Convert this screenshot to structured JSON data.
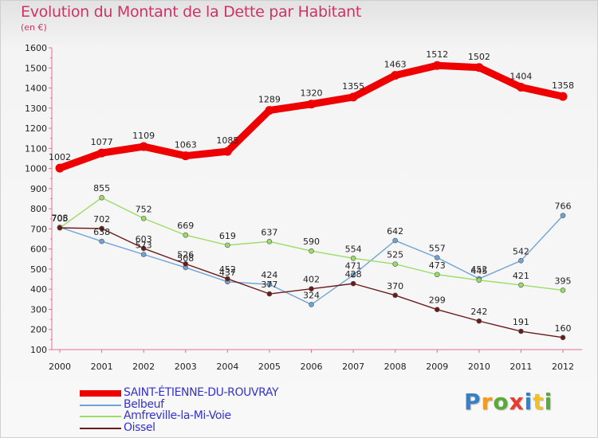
{
  "header": {
    "title": "Evolution du Montant de la Dette par Habitant",
    "subtitle": "(en €)"
  },
  "logo": {
    "text": "Proxiti",
    "letters": [
      {
        "ch": "P",
        "color": "#3a7fc1"
      },
      {
        "ch": "r",
        "color": "#f29a1f"
      },
      {
        "ch": "o",
        "color": "#5aaa3a"
      },
      {
        "ch": "x",
        "color": "#e63b2e"
      },
      {
        "ch": "i",
        "color": "#3a7fc1"
      },
      {
        "ch": "t",
        "color": "#f2c01f"
      },
      {
        "ch": "i",
        "color": "#5aaa3a"
      }
    ]
  },
  "chart_data": {
    "type": "line",
    "title": "Evolution du Montant de la Dette par Habitant",
    "subtitle": "(en €)",
    "x": [
      "2000",
      "2001",
      "2002",
      "2003",
      "2004",
      "2005",
      "2006",
      "2007",
      "2008",
      "2009",
      "2010",
      "2011",
      "2012"
    ],
    "ylim": [
      100,
      1600
    ],
    "yticks": [
      100,
      200,
      300,
      400,
      500,
      600,
      700,
      800,
      900,
      1000,
      1100,
      1200,
      1300,
      1400,
      1500,
      1600
    ],
    "grid": false,
    "legend_position": "bottom-left",
    "series": [
      {
        "name": "SAINT-ÉTIENNE-DU-ROUVRAY",
        "color": "#ee0000",
        "values": [
          1002,
          1077,
          1109,
          1063,
          1085,
          1289,
          1320,
          1355,
          1463,
          1512,
          1502,
          1404,
          1358
        ]
      },
      {
        "name": "Belbeuf",
        "color": "#6fa3d6",
        "values": [
          708,
          638,
          573,
          508,
          437,
          424,
          324,
          471,
          642,
          557,
          452,
          542,
          766
        ]
      },
      {
        "name": "Amfreville-la-Mi-Voie",
        "color": "#99dd66",
        "values": [
          705,
          855,
          752,
          669,
          619,
          637,
          590,
          554,
          525,
          473,
          445,
          421,
          395
        ]
      },
      {
        "name": "Oissel",
        "color": "#6b1a1a",
        "values": [
          705,
          702,
          603,
          526,
          452,
          377,
          402,
          428,
          370,
          299,
          242,
          191,
          160
        ]
      }
    ]
  }
}
